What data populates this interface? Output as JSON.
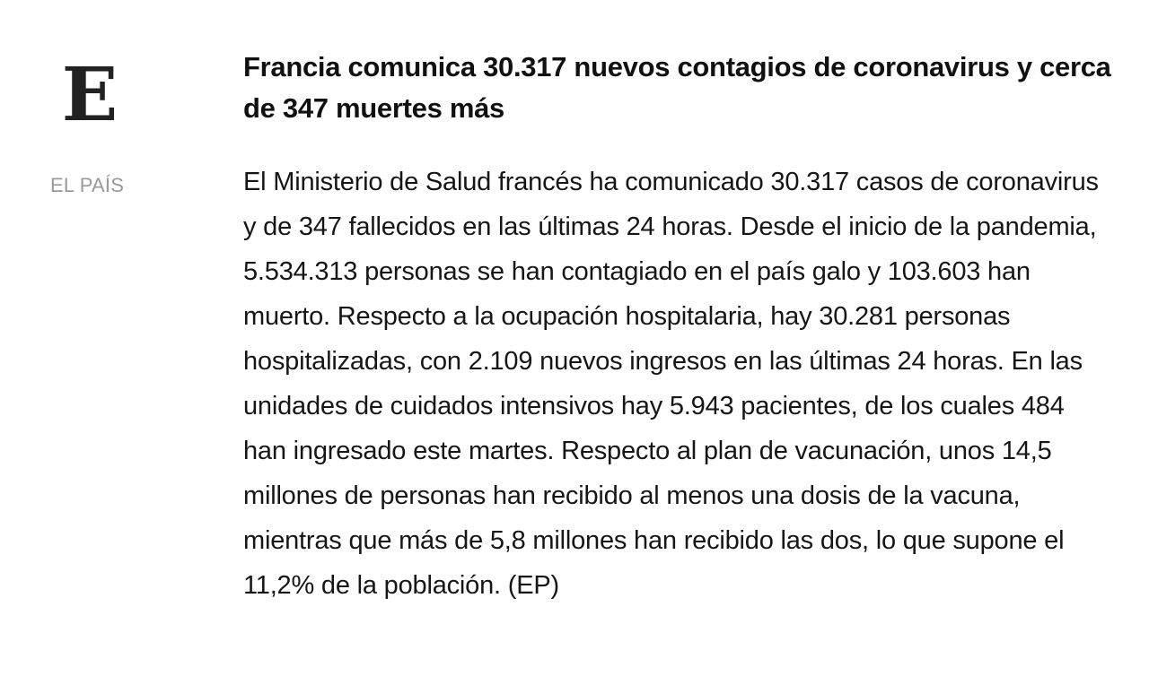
{
  "publication": {
    "logo_letter": "E",
    "name": "EL PAÍS"
  },
  "article": {
    "headline": "Francia comunica 30.317 nuevos contagios de coronavirus y cerca de 347 muertes más",
    "body": "El Ministerio de Salud francés ha comunicado 30.317 casos de coronavirus y de 347 fallecidos en las últimas 24 horas. Desde el inicio de la pandemia, 5.534.313 personas se han contagiado en el país galo y 103.603 han muerto. Respecto a la ocupación hospitalaria, hay 30.281 personas hospitalizadas, con 2.109 nuevos ingresos en las últimas 24 horas. En las unidades de cuidados intensivos hay 5.943 pacientes, de los cuales 484 han ingresado este martes. Respecto al plan de vacunación, unos 14,5 millones de personas han recibido al menos una dosis de la vacuna, mientras que más de 5,8 millones han recibido las dos, lo que supone el 11,2% de la población. (EP)"
  },
  "colors": {
    "logo": "#222222",
    "source": "#9a9a9a",
    "headline": "#111111",
    "body": "#161616",
    "background": "#ffffff"
  }
}
